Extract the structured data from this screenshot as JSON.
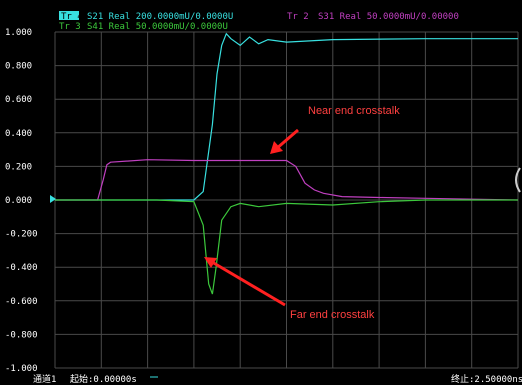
{
  "window": {
    "legend": [
      {
        "tag": "Tr 4",
        "text": "S21 Real 200.0000mU/0.0000U",
        "color": "#38e0e0"
      },
      {
        "tag": "Tr 2",
        "text": "S31 Real 50.0000mU/0.00000",
        "color": "#c040c0"
      },
      {
        "tag": "Tr 3",
        "text": "S41 Real 50.0000mU/0.0000U",
        "color": "#3cc83c"
      }
    ],
    "status": {
      "channel": "通道1",
      "start": "起始:0.00000s",
      "stop": "终止:2.50000ns"
    },
    "colors": {
      "background": "#000000",
      "grid": "#4a4a4a",
      "arrow": "#ff2020",
      "annotation": "#ff4040"
    }
  },
  "annotations": [
    {
      "id": "near",
      "text": "Near end crosstalk",
      "points_to": "Tr 2"
    },
    {
      "id": "far",
      "text": "Far end crosstalk",
      "points_to": "Tr 3"
    }
  ],
  "chart_data": {
    "type": "line",
    "xlabel": "",
    "ylabel": "",
    "xlim": [
      0,
      2.5
    ],
    "ylim": [
      -1.0,
      1.0
    ],
    "x_unit": "ns",
    "grid": true,
    "y_ticks": [
      "1.000",
      "0.800",
      "0.600",
      "0.400",
      "0.200",
      "0.000",
      "-0.200",
      "-0.400",
      "-0.600",
      "-0.800",
      "-1.000"
    ],
    "y_tick_values": [
      1.0,
      0.8,
      0.6,
      0.4,
      0.2,
      0.0,
      -0.2,
      -0.4,
      -0.6,
      -0.8,
      -1.0
    ],
    "series": [
      {
        "name": "S21 Real",
        "trace": "Tr 4",
        "color": "#38e0e0",
        "x": [
          0.0,
          0.5,
          0.75,
          0.8,
          0.85,
          0.875,
          0.9,
          0.925,
          0.95,
          1.0,
          1.05,
          1.1,
          1.15,
          1.25,
          1.5,
          2.0,
          2.5
        ],
        "y": [
          0.0,
          0.0,
          0.0,
          0.05,
          0.45,
          0.75,
          0.92,
          0.99,
          0.96,
          0.92,
          0.97,
          0.93,
          0.955,
          0.94,
          0.955,
          0.96,
          0.96
        ]
      },
      {
        "name": "S31 Real",
        "trace": "Tr 2",
        "color": "#c040c0",
        "x": [
          0.0,
          0.23,
          0.26,
          0.28,
          0.3,
          0.5,
          0.75,
          1.0,
          1.25,
          1.3,
          1.35,
          1.4,
          1.45,
          1.55,
          1.75,
          2.0,
          2.5
        ],
        "y": [
          0.0,
          0.0,
          0.12,
          0.21,
          0.225,
          0.24,
          0.235,
          0.235,
          0.235,
          0.2,
          0.1,
          0.06,
          0.04,
          0.02,
          0.015,
          0.01,
          0.0
        ],
        "annotation": "Near end crosstalk"
      },
      {
        "name": "S41 Real",
        "trace": "Tr 3",
        "color": "#3cc83c",
        "x": [
          0.0,
          0.55,
          0.75,
          0.8,
          0.83,
          0.85,
          0.87,
          0.9,
          0.95,
          1.0,
          1.1,
          1.25,
          1.5,
          1.75,
          2.0,
          2.5
        ],
        "y": [
          0.0,
          0.0,
          -0.01,
          -0.15,
          -0.5,
          -0.56,
          -0.4,
          -0.12,
          -0.04,
          -0.02,
          -0.04,
          -0.02,
          -0.03,
          -0.01,
          0.0,
          0.0
        ],
        "annotation": "Far end crosstalk"
      }
    ]
  }
}
